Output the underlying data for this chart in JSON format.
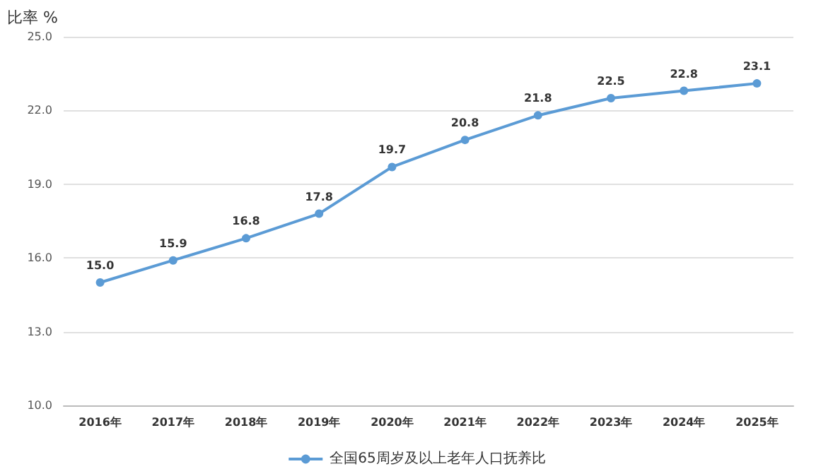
{
  "chart_data": {
    "type": "line",
    "ylabel": "比率 %",
    "categories": [
      "2016年",
      "2017年",
      "2018年",
      "2019年",
      "2020年",
      "2021年",
      "2022年",
      "2023年",
      "2024年",
      "2025年"
    ],
    "series": [
      {
        "name": "全国65周岁及以上老年人口抚养比",
        "color": "#5b9bd5",
        "values": [
          15.0,
          15.9,
          16.8,
          17.8,
          19.7,
          20.8,
          21.8,
          22.5,
          22.8,
          23.1
        ]
      }
    ],
    "ylim": [
      10,
      25
    ],
    "yticks": [
      {
        "value": 10,
        "label": "10.0"
      },
      {
        "value": 13,
        "label": "13.0"
      },
      {
        "value": 16,
        "label": "16.0"
      },
      {
        "value": 19,
        "label": "19.0"
      },
      {
        "value": 22,
        "label": "22.0"
      },
      {
        "value": 25,
        "label": "25.0"
      }
    ],
    "value_labels": [
      "15.0",
      "15.9",
      "16.8",
      "17.8",
      "19.7",
      "20.8",
      "21.8",
      "22.5",
      "22.8",
      "23.1"
    ],
    "grid": "y",
    "legend": "bottom",
    "marker": "circle"
  }
}
